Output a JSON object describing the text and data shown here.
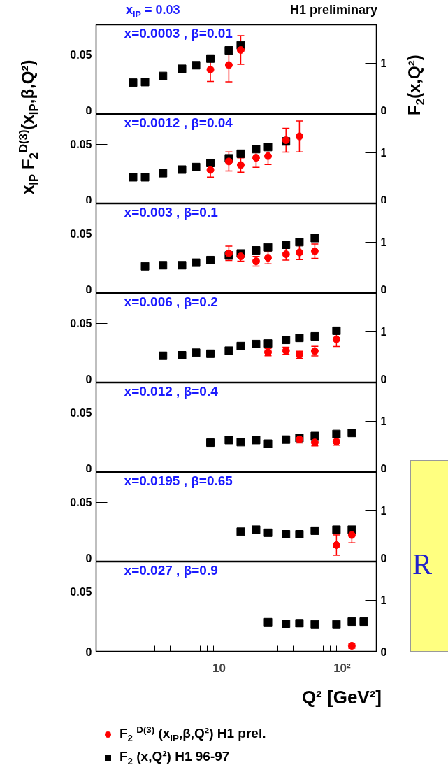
{
  "chart_data": [
    {
      "type": "scatter",
      "title": "x=0.0003 , β=0.01",
      "annotations": [
        "x$_{IP}$ = 0.03",
        "H1 preliminary"
      ],
      "ylabel": "x$_{IP}$ F$_{2}$$^{D(3)}$(x$_{IP}$,β,Q²)",
      "y2label": "F$_{2}$(x,Q²)",
      "log": "x",
      "xlim": [
        1,
        190
      ],
      "ylim": [
        0,
        0.075
      ],
      "yticks": [
        0,
        0.05
      ],
      "y2lim": [
        0,
        1.75
      ],
      "y2ticks": [
        0,
        1
      ],
      "tick_labels": "y",
      "grid": false,
      "series": [
        {
          "color": "#ff0000",
          "marker": "circle",
          "x": [
            8.5,
            12,
            15
          ],
          "values": [
            0.0375,
            0.0413,
            0.0539
          ],
          "errors": [
            0.01,
            0.014,
            0.012
          ]
        },
        {
          "color": "#000000",
          "marker": "square",
          "axis": "y2",
          "x": [
            2,
            2.5,
            3.5,
            5,
            6.5,
            8.5,
            12,
            15
          ],
          "values": [
            0.62,
            0.63,
            0.75,
            0.89,
            0.96,
            1.09,
            1.25,
            1.35
          ]
        }
      ]
    },
    {
      "type": "scatter",
      "title": "x=0.0012 , β=0.04",
      "log": "x",
      "xlim": [
        1,
        190
      ],
      "ylim": [
        0,
        0.075
      ],
      "yticks": [
        0,
        0.05
      ],
      "y2lim": [
        0,
        1.75
      ],
      "y2ticks": [
        0,
        1
      ],
      "tick_labels": "y",
      "grid": false,
      "series": [
        {
          "color": "#ff0000",
          "marker": "circle",
          "x": [
            8.5,
            12,
            15,
            20,
            25,
            35,
            45
          ],
          "values": [
            0.0284,
            0.0355,
            0.0325,
            0.0386,
            0.04,
            0.0533,
            0.0565
          ],
          "errors": [
            0.006,
            0.008,
            0.006,
            0.008,
            0.007,
            0.01,
            0.013
          ]
        },
        {
          "color": "#000000",
          "marker": "square",
          "axis": "y2",
          "x": [
            2,
            2.5,
            3.5,
            5,
            6.5,
            8.5,
            12,
            15,
            20,
            25,
            35
          ],
          "values": [
            0.52,
            0.52,
            0.6,
            0.67,
            0.72,
            0.8,
            0.89,
            0.98,
            1.07,
            1.11,
            1.22
          ]
        }
      ]
    },
    {
      "type": "scatter",
      "title": "x=0.003 , β=0.1",
      "log": "x",
      "xlim": [
        1,
        190
      ],
      "ylim": [
        0,
        0.075
      ],
      "yticks": [
        0,
        0.05
      ],
      "y2lim": [
        0,
        1.75
      ],
      "y2ticks": [
        0,
        1
      ],
      "tick_labels": "y",
      "grid": false,
      "series": [
        {
          "color": "#ff0000",
          "marker": "circle",
          "x": [
            12,
            15,
            20,
            25,
            35,
            45,
            60
          ],
          "values": [
            0.0335,
            0.031,
            0.0269,
            0.0298,
            0.0328,
            0.0343,
            0.0353
          ],
          "errors": [
            0.006,
            0.004,
            0.004,
            0.005,
            0.005,
            0.006,
            0.006
          ]
        },
        {
          "color": "#000000",
          "marker": "square",
          "axis": "y2",
          "x": [
            2.5,
            3.5,
            5,
            6.5,
            8.5,
            12,
            15,
            20,
            25,
            35,
            45,
            60
          ],
          "values": [
            0.53,
            0.55,
            0.55,
            0.6,
            0.65,
            0.74,
            0.78,
            0.84,
            0.9,
            0.95,
            1.0,
            1.08
          ]
        }
      ]
    },
    {
      "type": "scatter",
      "title": "x=0.006 , β=0.2",
      "log": "x",
      "xlim": [
        1,
        190
      ],
      "ylim": [
        0,
        0.075
      ],
      "yticks": [
        0,
        0.05
      ],
      "y2lim": [
        0,
        1.75
      ],
      "y2ticks": [
        0,
        1
      ],
      "tick_labels": "y",
      "grid": false,
      "series": [
        {
          "color": "#ff0000",
          "marker": "circle",
          "x": [
            25,
            35,
            45,
            60,
            90
          ],
          "values": [
            0.0257,
            0.0269,
            0.0235,
            0.0266,
            0.0365
          ],
          "errors": [
            0.003,
            0.003,
            0.003,
            0.004,
            0.006
          ]
        },
        {
          "color": "#000000",
          "marker": "square",
          "axis": "y2",
          "x": [
            3.5,
            5,
            6.5,
            8.5,
            12,
            15,
            20,
            25,
            35,
            45,
            60,
            90
          ],
          "values": [
            0.53,
            0.54,
            0.59,
            0.57,
            0.63,
            0.72,
            0.76,
            0.77,
            0.84,
            0.88,
            0.91,
            1.02
          ]
        }
      ]
    },
    {
      "type": "scatter",
      "title": "x=0.012 , β=0.4",
      "log": "x",
      "xlim": [
        1,
        190
      ],
      "ylim": [
        0,
        0.075
      ],
      "yticks": [
        0,
        0.05
      ],
      "y2lim": [
        0,
        1.75
      ],
      "y2ticks": [
        0,
        1
      ],
      "tick_labels": "y",
      "grid": false,
      "series": [
        {
          "color": "#ff0000",
          "marker": "circle",
          "x": [
            45,
            60,
            90
          ],
          "values": [
            0.0276,
            0.0251,
            0.0257
          ],
          "errors": [
            0.003,
            0.003,
            0.003
          ]
        },
        {
          "color": "#000000",
          "marker": "square",
          "axis": "y2",
          "x": [
            8.5,
            12,
            15,
            20,
            25,
            35,
            45,
            60,
            90,
            120
          ],
          "values": [
            0.58,
            0.63,
            0.59,
            0.63,
            0.56,
            0.64,
            0.67,
            0.71,
            0.75,
            0.77
          ]
        }
      ]
    },
    {
      "type": "scatter",
      "title": "x=0.0195 , β=0.65",
      "annotations": [
        "R"
      ],
      "log": "x",
      "xlim": [
        1,
        190
      ],
      "ylim": [
        0,
        0.075
      ],
      "yticks": [
        0,
        0.05
      ],
      "y2lim": [
        0,
        1.75
      ],
      "y2ticks": [
        0,
        1
      ],
      "tick_labels": "y",
      "grid": false,
      "series": [
        {
          "color": "#ff0000",
          "marker": "circle",
          "x": [
            90,
            120
          ],
          "values": [
            0.0141,
            0.0225
          ],
          "errors": [
            0.0085,
            0.0065
          ]
        },
        {
          "color": "#000000",
          "marker": "square",
          "axis": "y2",
          "x": [
            15,
            20,
            25,
            35,
            45,
            60,
            90,
            120
          ],
          "values": [
            0.59,
            0.63,
            0.57,
            0.54,
            0.54,
            0.61,
            0.63,
            0.63
          ]
        }
      ]
    },
    {
      "type": "scatter",
      "title": "x=0.027 , β=0.9",
      "xlabel": "Q² [GeV²]",
      "log": "x",
      "xlim": [
        1,
        190
      ],
      "ylim": [
        0,
        0.075
      ],
      "yticks": [
        0,
        0.05
      ],
      "y2lim": [
        0,
        1.75
      ],
      "y2ticks": [
        0,
        1
      ],
      "grid": false,
      "legend": "bottom",
      "xticks": [
        {
          "value": 2,
          "label": null
        },
        {
          "value": 3,
          "label": null
        },
        {
          "value": 4,
          "label": null
        },
        {
          "value": 5,
          "label": null
        },
        {
          "value": 6,
          "label": null
        },
        {
          "value": 7,
          "label": null
        },
        {
          "value": 8,
          "label": null
        },
        {
          "value": 9,
          "label": null
        },
        {
          "value": 10,
          "label": "10"
        },
        {
          "value": 20,
          "label": null
        },
        {
          "value": 30,
          "label": null
        },
        {
          "value": 40,
          "label": null
        },
        {
          "value": 50,
          "label": null
        },
        {
          "value": 60,
          "label": null
        },
        {
          "value": 70,
          "label": null
        },
        {
          "value": 80,
          "label": null
        },
        {
          "value": 90,
          "label": null
        },
        {
          "value": 100,
          "label": "10²"
        }
      ],
      "series": [
        {
          "name": "F$_{2}$ $^{D(3)}$ (x$_{IP}$,β,Q²) H1 prel.",
          "color": "#ff0000",
          "marker": "circle",
          "x": [
            120
          ],
          "values": [
            0.0047
          ],
          "errors": [
            0.002
          ]
        },
        {
          "name": "F$_{2}$ (x,Q²) H1 96-97",
          "color": "#000000",
          "marker": "square",
          "axis": "y2",
          "x": [
            25,
            35,
            45,
            60,
            90,
            120,
            150
          ],
          "values": [
            0.57,
            0.54,
            0.55,
            0.53,
            0.53,
            0.58,
            0.58
          ]
        }
      ]
    }
  ]
}
